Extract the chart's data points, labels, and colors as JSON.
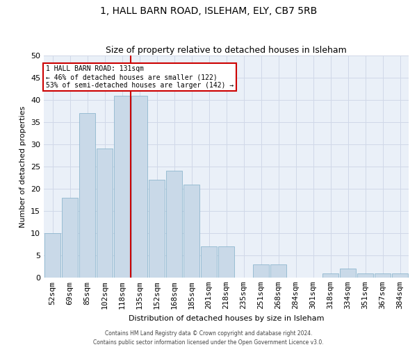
{
  "title1": "1, HALL BARN ROAD, ISLEHAM, ELY, CB7 5RB",
  "title2": "Size of property relative to detached houses in Isleham",
  "xlabel": "Distribution of detached houses by size in Isleham",
  "ylabel": "Number of detached properties",
  "categories": [
    "52sqm",
    "69sqm",
    "85sqm",
    "102sqm",
    "118sqm",
    "135sqm",
    "152sqm",
    "168sqm",
    "185sqm",
    "201sqm",
    "218sqm",
    "235sqm",
    "251sqm",
    "268sqm",
    "284sqm",
    "301sqm",
    "318sqm",
    "334sqm",
    "351sqm",
    "367sqm",
    "384sqm"
  ],
  "values": [
    10,
    18,
    37,
    29,
    41,
    41,
    22,
    24,
    21,
    7,
    7,
    0,
    3,
    3,
    0,
    0,
    1,
    2,
    1,
    1,
    1
  ],
  "bar_color": "#c9d9e8",
  "bar_edge_color": "#7faec8",
  "annotation_text": "1 HALL BARN ROAD: 131sqm\n← 46% of detached houses are smaller (122)\n53% of semi-detached houses are larger (142) →",
  "annotation_box_color": "#ffffff",
  "annotation_box_edge_color": "#cc0000",
  "ref_line_color": "#cc0000",
  "grid_color": "#d0d8e8",
  "background_color": "#eaf0f8",
  "ylim": [
    0,
    50
  ],
  "yticks": [
    0,
    5,
    10,
    15,
    20,
    25,
    30,
    35,
    40,
    45,
    50
  ],
  "footer1": "Contains HM Land Registry data © Crown copyright and database right 2024.",
  "footer2": "Contains public sector information licensed under the Open Government Licence v3.0."
}
